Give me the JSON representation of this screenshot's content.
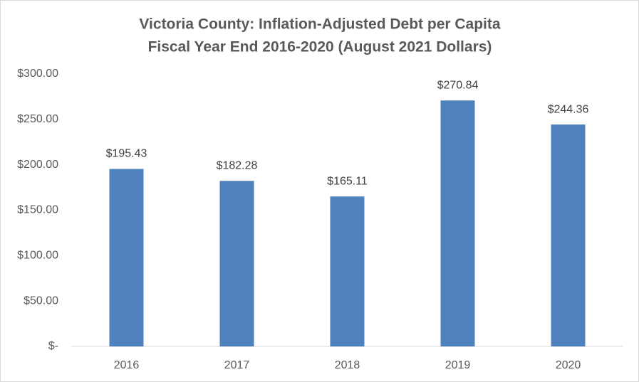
{
  "chart_data": {
    "type": "bar",
    "title": "Victoria County: Inflation-Adjusted Debt per Capita",
    "subtitle": "Fiscal Year End 2016-2020 (August 2021 Dollars)",
    "categories": [
      "2016",
      "2017",
      "2018",
      "2019",
      "2020"
    ],
    "values": [
      195.43,
      182.28,
      165.11,
      270.84,
      244.36
    ],
    "value_labels": [
      "$195.43",
      "$182.28",
      "$165.11",
      "$270.84",
      "$244.36"
    ],
    "color": "#4f81bd",
    "ylim": [
      0,
      300
    ],
    "yticks": [
      {
        "value": 0,
        "label": "$-"
      },
      {
        "value": 50,
        "label": "$50.00"
      },
      {
        "value": 100,
        "label": "$100.00"
      },
      {
        "value": 150,
        "label": "$150.00"
      },
      {
        "value": 200,
        "label": "$200.00"
      },
      {
        "value": 250,
        "label": "$250.00"
      },
      {
        "value": 300,
        "label": "$300.00"
      }
    ],
    "grid": false
  }
}
